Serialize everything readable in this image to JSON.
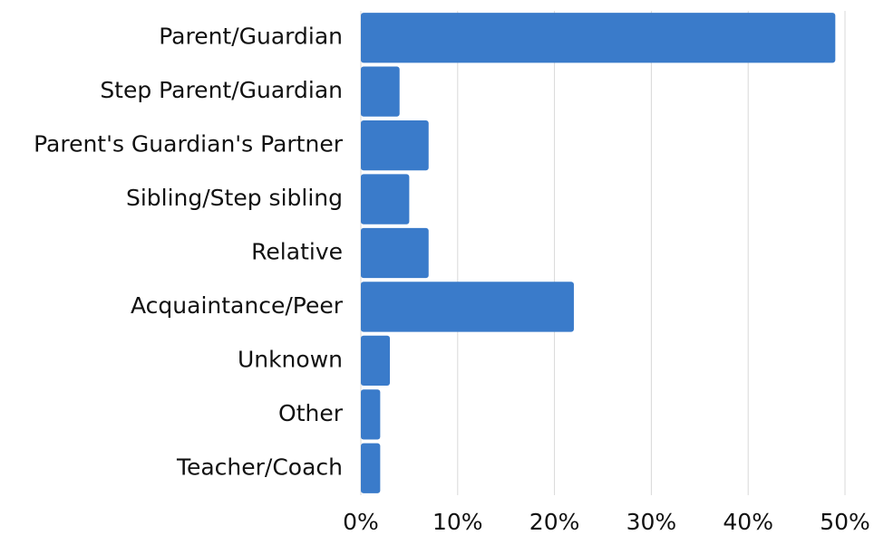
{
  "chart_data": {
    "type": "bar",
    "orientation": "horizontal",
    "categories": [
      "Parent/Guardian",
      "Step Parent/Guardian",
      "Parent's Guardian's Partner",
      "Sibling/Step sibling",
      "Relative",
      "Acquaintance/Peer",
      "Unknown",
      "Other",
      "Teacher/Coach"
    ],
    "values": [
      49,
      4,
      7,
      5,
      7,
      22,
      3,
      2,
      2
    ],
    "color": "#3a7bca",
    "xlim": [
      0,
      50
    ],
    "xticks": [
      {
        "value": 0,
        "label": "0%"
      },
      {
        "value": 10,
        "label": "10%"
      },
      {
        "value": 20,
        "label": "20%"
      },
      {
        "value": 30,
        "label": "30%"
      },
      {
        "value": 40,
        "label": "40%"
      },
      {
        "value": 50,
        "label": "50%"
      }
    ],
    "grid": true
  }
}
